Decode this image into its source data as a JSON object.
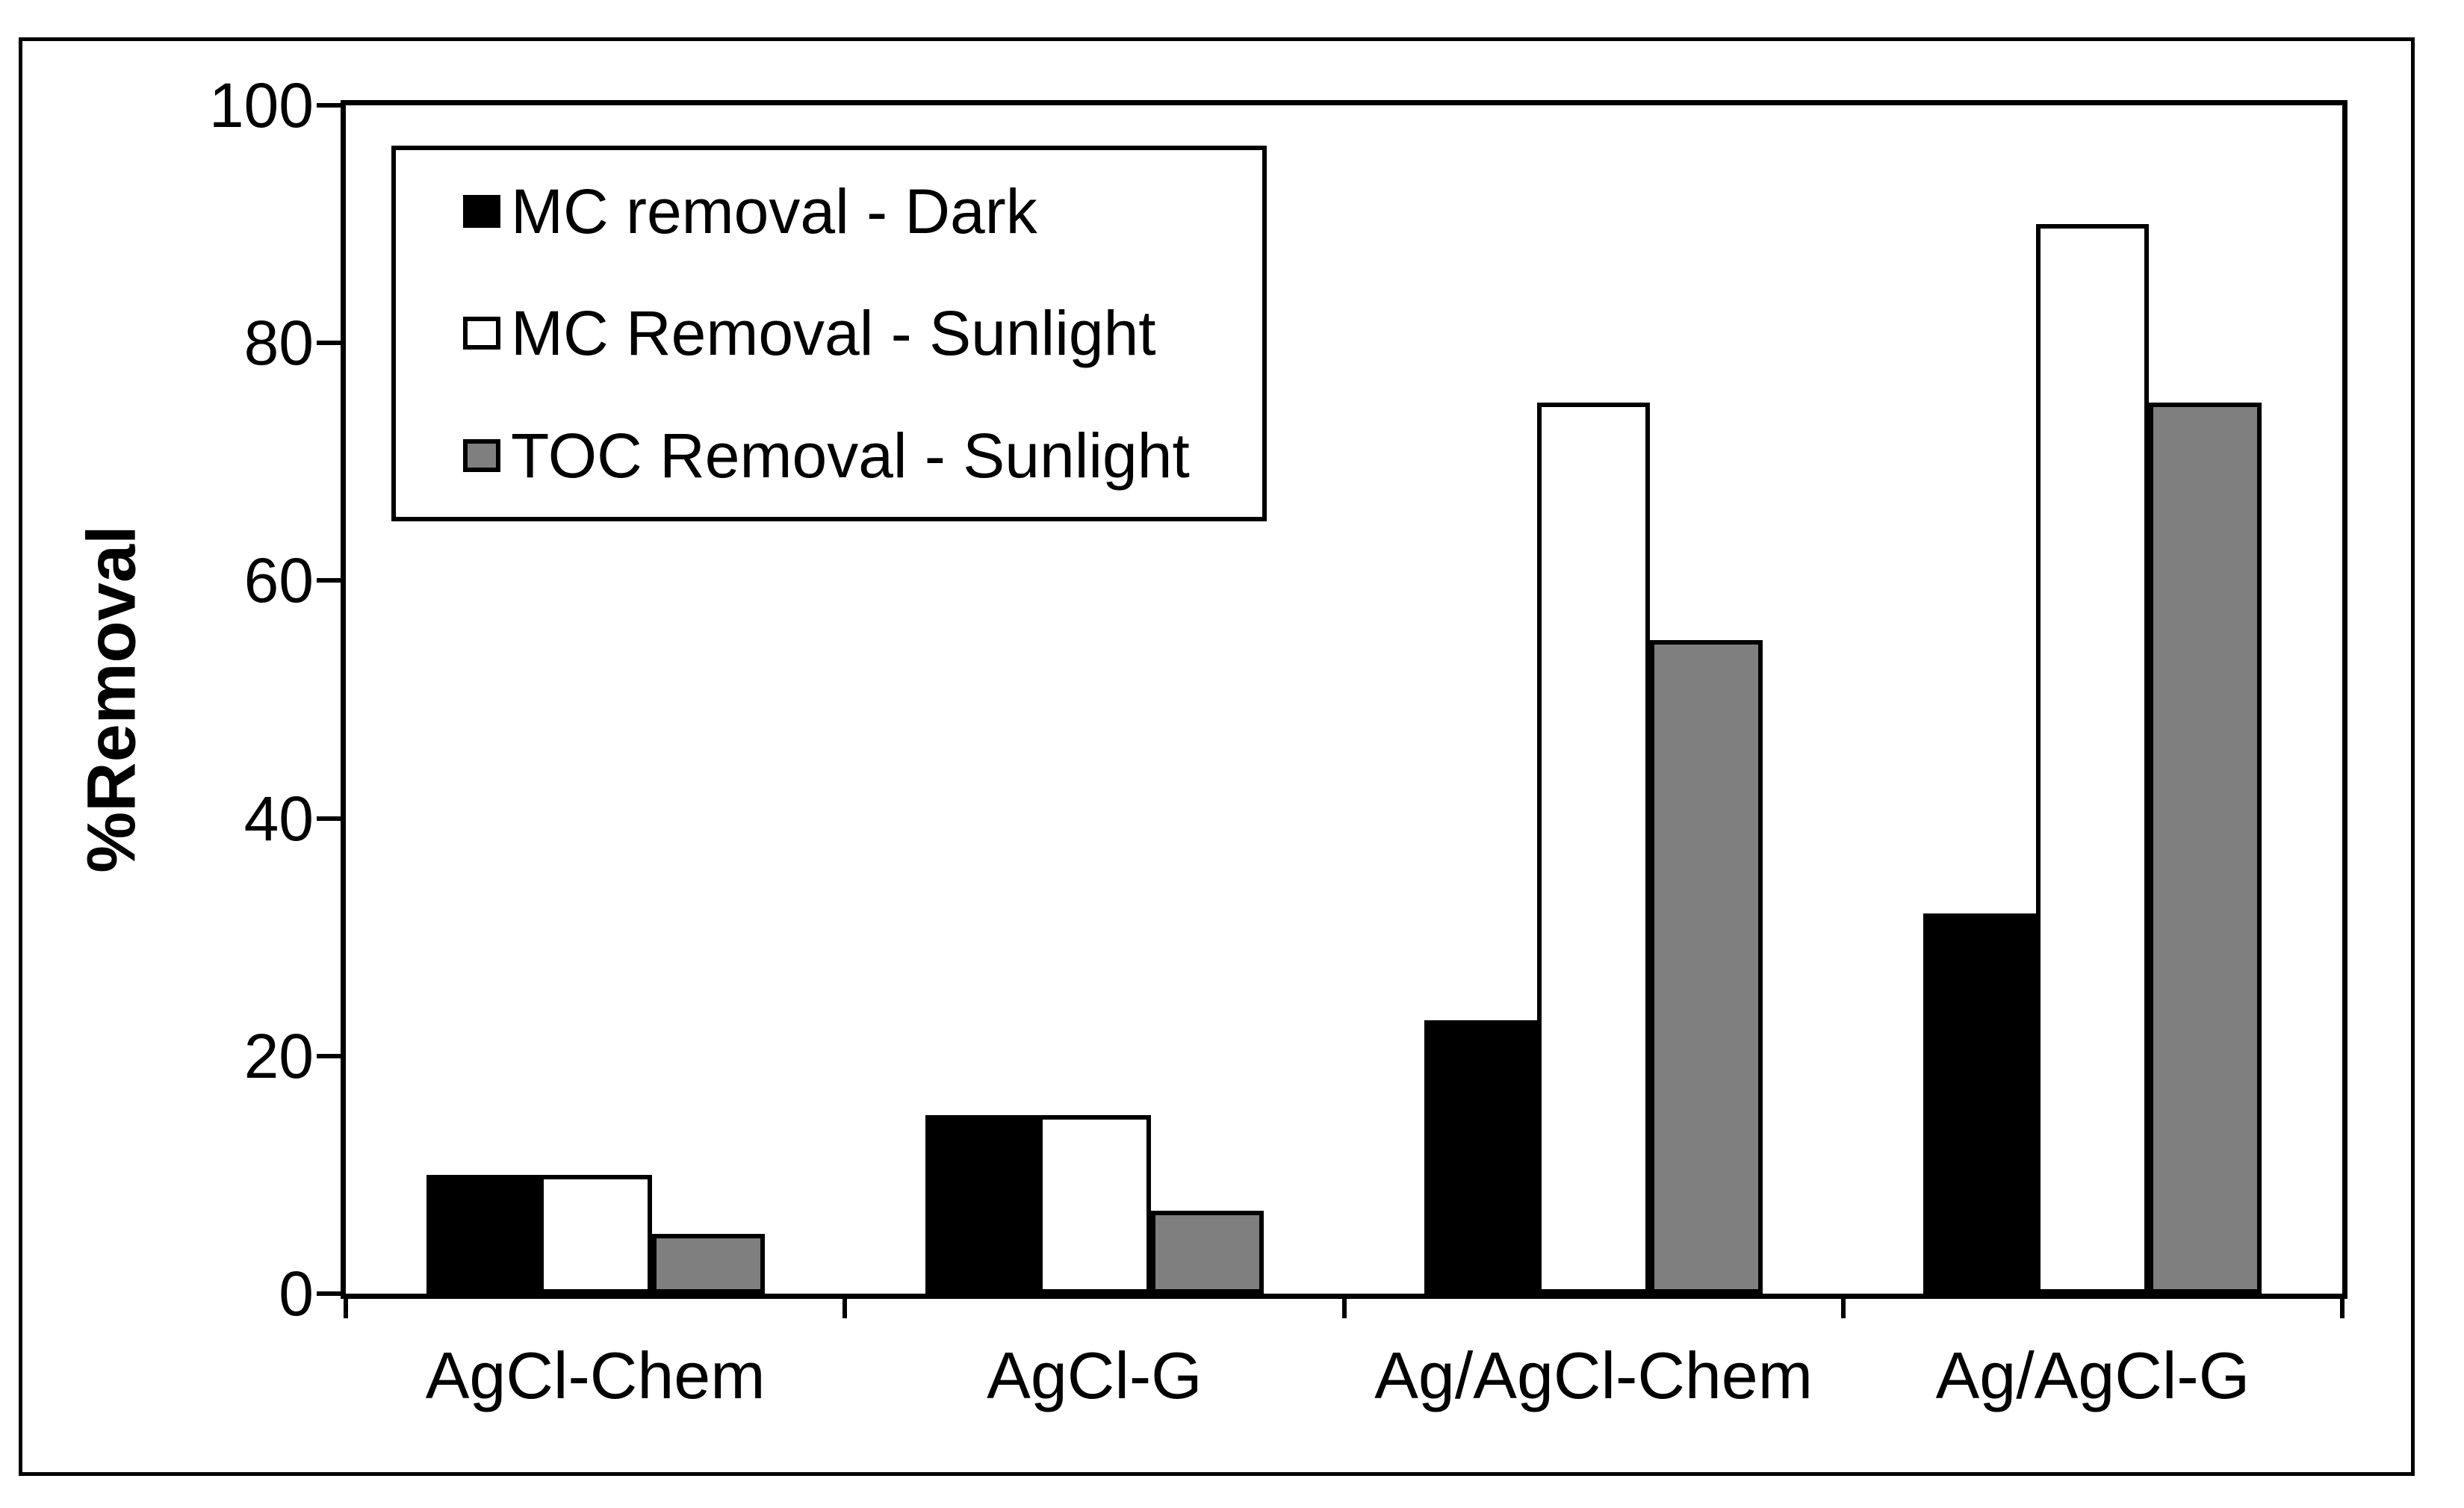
{
  "figure": {
    "background": "#FFFFFF",
    "border_color": "#000000"
  },
  "chart_data": {
    "type": "bar",
    "title": "",
    "xlabel": "",
    "ylabel": "%Removal",
    "ylim": [
      0,
      100
    ],
    "yticks": [
      0,
      20,
      40,
      60,
      80,
      100
    ],
    "grid": false,
    "legend_position": "upper-left-inside",
    "categories": [
      "AgCl-Chem",
      "AgCl-G",
      "Ag/AgCl-Chem",
      "Ag/AgCl-G"
    ],
    "series": [
      {
        "name": "MC removal - Dark",
        "fill": "#000000",
        "border": "#000000",
        "values": [
          10,
          15,
          23,
          32
        ]
      },
      {
        "name": "MC Removal - Sunlight",
        "fill": "#FFFFFF",
        "border": "#000000",
        "values": [
          10,
          15,
          75,
          90
        ]
      },
      {
        "name": "TOC Removal - Sunlight",
        "fill": "#7F7F7F",
        "border": "#000000",
        "values": [
          5,
          7,
          55,
          75
        ]
      }
    ]
  }
}
